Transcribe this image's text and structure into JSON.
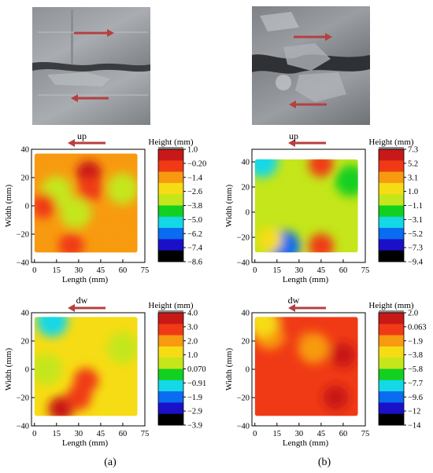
{
  "panel_labels": [
    "(a)",
    "(b)"
  ],
  "colors": {
    "arrow": "#b5403f",
    "colormap": [
      "#000000",
      "#1a10c8",
      "#0a6cf0",
      "#14d8e6",
      "#12d020",
      "#c4e61a",
      "#f6dc14",
      "#f89a10",
      "#f03a16",
      "#c81818",
      "#8c8c8c"
    ]
  },
  "chart_data": [
    {
      "type": "heatmap",
      "id": "a-up",
      "title": "up",
      "xlabel": "Length (mm)",
      "ylabel": "Width (mm)",
      "xticks": [
        "0",
        "15",
        "30",
        "45",
        "60",
        "75"
      ],
      "yticks": [
        "40",
        "20",
        "0",
        "−20",
        "−40"
      ],
      "xlim": [
        -2,
        75
      ],
      "ylim": [
        -40,
        40
      ],
      "colorbar": {
        "title": "Height (mm)",
        "labels": [
          "1.0",
          "−0.20",
          "−1.4",
          "−2.6",
          "−3.8",
          "−5.0",
          "−6.2",
          "−7.4",
          "−8.6"
        ],
        "range": [
          -8.6,
          1.0
        ]
      },
      "surface": {
        "x_range": [
          0,
          70
        ],
        "y_range": [
          -33,
          37
        ]
      },
      "hot_spots": [
        {
          "x": 37,
          "y": 23,
          "height": 0.6
        },
        {
          "x": 38,
          "y": 12,
          "height": 0.2
        },
        {
          "x": 6,
          "y": 0,
          "height": -0.5
        },
        {
          "x": 56,
          "y": -20,
          "height": -0.8
        },
        {
          "x": 25,
          "y": -28,
          "height": -0.6
        }
      ],
      "cold_spots": [
        {
          "x": 28,
          "y": -5,
          "height": -3.8
        },
        {
          "x": 15,
          "y": 10,
          "height": -3.4
        },
        {
          "x": 60,
          "y": 12,
          "height": -3.4
        }
      ]
    },
    {
      "type": "heatmap",
      "id": "b-up",
      "title": "up",
      "xlabel": "Length (mm)",
      "ylabel": "Width (mm)",
      "xticks": [
        "0",
        "15",
        "30",
        "45",
        "60",
        "75"
      ],
      "yticks": [
        "40",
        "20",
        "0",
        "−20",
        "−40"
      ],
      "xlim": [
        -2,
        75
      ],
      "ylim": [
        -40,
        50
      ],
      "colorbar": {
        "title": "Height (mm)",
        "labels": [
          "7.3",
          "5.2",
          "3.1",
          "1.0",
          "−1.1",
          "−3.1",
          "−5.2",
          "−7.3",
          "−9.4"
        ],
        "range": [
          -9.4,
          7.3
        ]
      },
      "surface": {
        "x_range": [
          0,
          70
        ],
        "y_range": [
          -32,
          42
        ]
      },
      "hot_spots": [
        {
          "x": 45,
          "y": 38,
          "height": 6.0
        },
        {
          "x": 45,
          "y": -27,
          "height": 5.0
        },
        {
          "x": 10,
          "y": -22,
          "height": 2.5
        }
      ],
      "cold_spots": [
        {
          "x": 20,
          "y": -27,
          "height": -6.5
        },
        {
          "x": 5,
          "y": 40,
          "height": -3.5
        },
        {
          "x": 65,
          "y": 25,
          "height": -2.0
        }
      ]
    },
    {
      "type": "heatmap",
      "id": "a-dw",
      "title": "dw",
      "xlabel": "Length (mm)",
      "ylabel": "Width (mm)",
      "xticks": [
        "0",
        "15",
        "30",
        "45",
        "60",
        "75"
      ],
      "yticks": [
        "40",
        "20",
        "0",
        "−20",
        "−40"
      ],
      "xlim": [
        -2,
        75
      ],
      "ylim": [
        -40,
        40
      ],
      "colorbar": {
        "title": "Height (mm)",
        "labels": [
          "4.0",
          "3.0",
          "2.0",
          "1.0",
          "0.070",
          "−0.91",
          "−1.9",
          "−2.9",
          "−3.9"
        ],
        "range": [
          -3.9,
          4.0
        ]
      },
      "surface": {
        "x_range": [
          0,
          70
        ],
        "y_range": [
          -33,
          37
        ]
      },
      "hot_spots": [
        {
          "x": 18,
          "y": -28,
          "height": 3.8
        },
        {
          "x": 35,
          "y": -8,
          "height": 3.2
        },
        {
          "x": 30,
          "y": -20,
          "height": 3.0
        }
      ],
      "cold_spots": [
        {
          "x": 12,
          "y": 34,
          "height": -1.2
        },
        {
          "x": 60,
          "y": 15,
          "height": 0.2
        },
        {
          "x": 8,
          "y": 0,
          "height": 0.2
        }
      ]
    },
    {
      "type": "heatmap",
      "id": "b-dw",
      "title": "dw",
      "xlabel": "Length (mm)",
      "ylabel": "Width (mm)",
      "xticks": [
        "0",
        "15",
        "30",
        "45",
        "60",
        "75"
      ],
      "yticks": [
        "40",
        "20",
        "0",
        "−20",
        "−40"
      ],
      "xlim": [
        -2,
        75
      ],
      "ylim": [
        -40,
        40
      ],
      "colorbar": {
        "title": "Height (mm)",
        "labels": [
          "2.0",
          "0.063",
          "−1.9",
          "−3.8",
          "−5.8",
          "−7.7",
          "−9.6",
          "−12",
          "−14"
        ],
        "range": [
          -14,
          2.0
        ]
      },
      "surface": {
        "x_range": [
          0,
          70
        ],
        "y_range": [
          -33,
          37
        ]
      },
      "hot_spots": [
        {
          "x": 60,
          "y": 10,
          "height": 1.5
        },
        {
          "x": 55,
          "y": -20,
          "height": 1.2
        },
        {
          "x": 25,
          "y": 30,
          "height": 1.0
        }
      ],
      "cold_spots": [
        {
          "x": 40,
          "y": 15,
          "height": -1.0
        },
        {
          "x": 10,
          "y": 25,
          "height": -0.8
        },
        {
          "x": 5,
          "y": 34,
          "height": -4.0
        }
      ]
    }
  ]
}
